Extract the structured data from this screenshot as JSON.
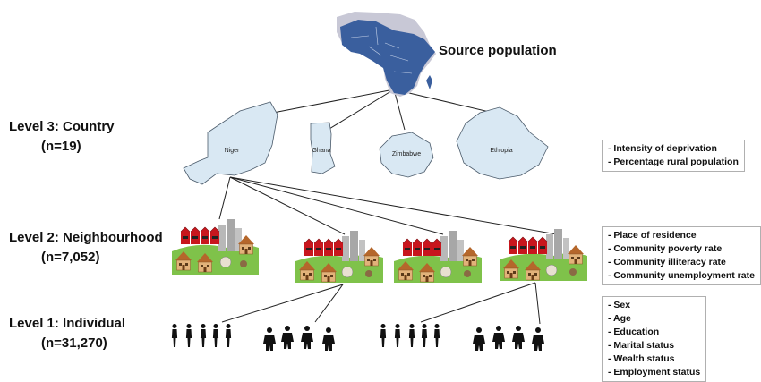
{
  "source_population": "Source population",
  "levels": {
    "country": {
      "title": "Level 3: Country",
      "n": "(n=19)"
    },
    "neighbourhood": {
      "title": "Level 2: Neighbourhood",
      "n": "(n=7,052)"
    },
    "individual": {
      "title": "Level 1: Individual",
      "n": "(n=31,270)"
    }
  },
  "countries": [
    "Niger",
    "Ghana",
    "Zimbabwe",
    "Ethiopia"
  ],
  "variables": {
    "country": [
      "- Intensity of deprivation",
      "- Percentage rural population"
    ],
    "neighbourhood": [
      "- Place of residence",
      "- Community poverty rate",
      "- Community illiteracy rate",
      "- Community unemployment rate"
    ],
    "individual": [
      "- Sex",
      "- Age",
      "- Education",
      "- Marital status",
      "- Wealth status",
      "- Employment status"
    ]
  },
  "colors": {
    "africa": "#3a5f9e",
    "country_fill": "#d9e8f3",
    "grass": "#7fc24a",
    "factory": "#c8161d"
  }
}
